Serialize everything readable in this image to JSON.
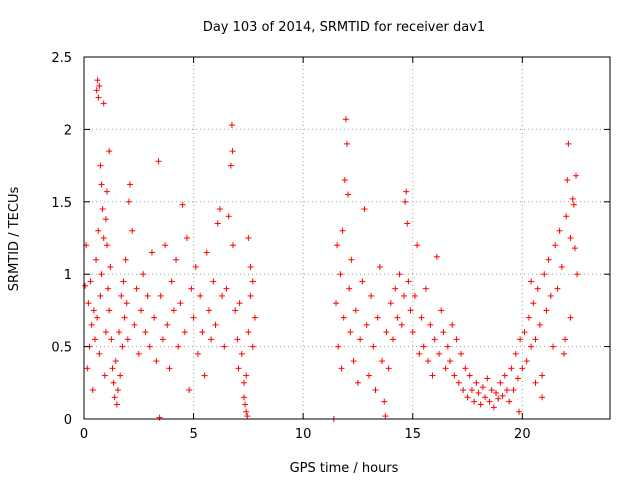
{
  "chart_data": {
    "type": "scatter",
    "title": "Day 103 of 2014, SRMTID for receiver dav1",
    "xlabel": "GPS time / hours",
    "ylabel": "SRMTID / TECUs",
    "xlim": [
      0,
      24
    ],
    "ylim": [
      0,
      2.5
    ],
    "x_ticks": [
      {
        "value": 0,
        "label": "0"
      },
      {
        "value": 5,
        "label": "5"
      },
      {
        "value": 10,
        "label": "10"
      },
      {
        "value": 15,
        "label": "15"
      },
      {
        "value": 20,
        "label": "20"
      }
    ],
    "y_ticks": [
      {
        "value": 0,
        "label": "0"
      },
      {
        "value": 0.5,
        "label": "0.5"
      },
      {
        "value": 1,
        "label": "1"
      },
      {
        "value": 1.5,
        "label": "1.5"
      },
      {
        "value": 2,
        "label": "2"
      },
      {
        "value": 2.5,
        "label": "2.5"
      }
    ],
    "grid": true,
    "marker": "+",
    "series_color": "#ff0000",
    "series": [
      {
        "name": "SRMTID",
        "points": [
          [
            0.05,
            0.92
          ],
          [
            0.1,
            1.2
          ],
          [
            0.15,
            0.35
          ],
          [
            0.2,
            0.8
          ],
          [
            0.25,
            0.5
          ],
          [
            0.3,
            0.95
          ],
          [
            0.35,
            0.65
          ],
          [
            0.4,
            0.2
          ],
          [
            0.45,
            0.75
          ],
          [
            0.5,
            0.55
          ],
          [
            0.55,
            1.1
          ],
          [
            0.6,
            0.7
          ],
          [
            0.65,
            1.3
          ],
          [
            0.7,
            0.45
          ],
          [
            0.75,
            0.85
          ],
          [
            0.8,
            1.0
          ],
          [
            0.85,
            1.45
          ],
          [
            0.9,
            1.25
          ],
          [
            0.95,
            0.3
          ],
          [
            1.0,
            0.6
          ],
          [
            0.58,
            2.27
          ],
          [
            0.62,
            2.34
          ],
          [
            0.66,
            2.22
          ],
          [
            0.7,
            2.3
          ],
          [
            0.9,
            2.18
          ],
          [
            0.75,
            1.75
          ],
          [
            0.8,
            1.62
          ],
          [
            1.05,
            1.57
          ],
          [
            1.15,
            1.85
          ],
          [
            1.0,
            1.38
          ],
          [
            1.05,
            1.2
          ],
          [
            1.1,
            0.9
          ],
          [
            1.15,
            0.75
          ],
          [
            1.2,
            1.05
          ],
          [
            1.25,
            0.55
          ],
          [
            1.3,
            0.35
          ],
          [
            1.35,
            0.25
          ],
          [
            1.4,
            0.15
          ],
          [
            1.45,
            0.4
          ],
          [
            1.5,
            0.1
          ],
          [
            1.55,
            0.2
          ],
          [
            1.6,
            0.6
          ],
          [
            1.65,
            0.3
          ],
          [
            1.7,
            0.85
          ],
          [
            1.75,
            0.5
          ],
          [
            1.8,
            0.95
          ],
          [
            1.85,
            0.7
          ],
          [
            1.9,
            1.1
          ],
          [
            1.95,
            0.8
          ],
          [
            2.0,
            0.55
          ],
          [
            2.05,
            1.5
          ],
          [
            2.1,
            1.62
          ],
          [
            2.2,
            1.3
          ],
          [
            2.3,
            0.65
          ],
          [
            2.4,
            0.9
          ],
          [
            2.5,
            0.45
          ],
          [
            2.6,
            0.75
          ],
          [
            2.7,
            1.0
          ],
          [
            2.8,
            0.6
          ],
          [
            2.9,
            0.85
          ],
          [
            3.0,
            0.5
          ],
          [
            3.1,
            1.15
          ],
          [
            3.2,
            0.7
          ],
          [
            3.3,
            0.4
          ],
          [
            3.4,
            1.78
          ],
          [
            3.45,
            0.01
          ],
          [
            3.5,
            0.85
          ],
          [
            3.6,
            0.55
          ],
          [
            3.7,
            1.2
          ],
          [
            3.8,
            0.65
          ],
          [
            3.9,
            0.35
          ],
          [
            4.0,
            0.95
          ],
          [
            4.1,
            0.75
          ],
          [
            4.2,
            1.1
          ],
          [
            4.3,
            0.5
          ],
          [
            4.4,
            0.8
          ],
          [
            4.5,
            1.48
          ],
          [
            4.6,
            0.6
          ],
          [
            4.7,
            1.25
          ],
          [
            4.8,
            0.2
          ],
          [
            4.9,
            0.9
          ],
          [
            5.0,
            0.7
          ],
          [
            5.1,
            1.05
          ],
          [
            5.2,
            0.45
          ],
          [
            5.3,
            0.85
          ],
          [
            5.4,
            0.6
          ],
          [
            5.5,
            0.3
          ],
          [
            5.6,
            1.15
          ],
          [
            5.7,
            0.75
          ],
          [
            5.8,
            0.55
          ],
          [
            5.9,
            0.95
          ],
          [
            6.0,
            0.65
          ],
          [
            6.1,
            1.35
          ],
          [
            6.2,
            1.45
          ],
          [
            6.3,
            0.85
          ],
          [
            6.4,
            0.5
          ],
          [
            6.5,
            0.9
          ],
          [
            6.6,
            1.4
          ],
          [
            6.7,
            1.75
          ],
          [
            6.75,
            2.03
          ],
          [
            6.78,
            1.85
          ],
          [
            6.8,
            1.2
          ],
          [
            6.9,
            0.75
          ],
          [
            7.0,
            0.55
          ],
          [
            7.05,
            0.35
          ],
          [
            7.1,
            0.8
          ],
          [
            7.2,
            0.45
          ],
          [
            7.3,
            0.25
          ],
          [
            7.35,
            0.1
          ],
          [
            7.4,
            0.05
          ],
          [
            7.5,
            0.6
          ],
          [
            7.6,
            0.85
          ],
          [
            7.7,
            0.5
          ],
          [
            7.8,
            0.7
          ],
          [
            7.4,
            0.3
          ],
          [
            7.5,
            1.25
          ],
          [
            7.6,
            1.05
          ],
          [
            7.3,
            0.15
          ],
          [
            7.45,
            0.02
          ],
          [
            7.7,
            0.95
          ],
          [
            11.4,
            0.0
          ],
          [
            11.5,
            0.8
          ],
          [
            11.55,
            1.2
          ],
          [
            11.6,
            0.5
          ],
          [
            11.7,
            1.0
          ],
          [
            11.75,
            0.35
          ],
          [
            11.8,
            1.3
          ],
          [
            11.85,
            0.7
          ],
          [
            11.9,
            1.65
          ],
          [
            11.95,
            2.07
          ],
          [
            12.0,
            1.9
          ],
          [
            12.05,
            1.55
          ],
          [
            12.1,
            0.9
          ],
          [
            12.15,
            0.6
          ],
          [
            12.2,
            1.1
          ],
          [
            12.3,
            0.4
          ],
          [
            12.4,
            0.75
          ],
          [
            12.5,
            0.25
          ],
          [
            12.6,
            0.55
          ],
          [
            12.7,
            0.95
          ],
          [
            12.8,
            1.45
          ],
          [
            12.9,
            0.65
          ],
          [
            13.0,
            0.3
          ],
          [
            13.1,
            0.85
          ],
          [
            13.2,
            0.5
          ],
          [
            13.3,
            0.2
          ],
          [
            13.4,
            0.7
          ],
          [
            13.5,
            1.05
          ],
          [
            13.6,
            0.4
          ],
          [
            13.7,
            0.12
          ],
          [
            13.75,
            0.02
          ],
          [
            13.8,
            0.6
          ],
          [
            13.9,
            0.35
          ],
          [
            14.0,
            0.8
          ],
          [
            14.1,
            0.55
          ],
          [
            14.2,
            0.9
          ],
          [
            14.3,
            0.7
          ],
          [
            14.4,
            1.0
          ],
          [
            14.5,
            0.65
          ],
          [
            14.6,
            0.85
          ],
          [
            14.65,
            1.5
          ],
          [
            14.7,
            1.57
          ],
          [
            14.75,
            1.35
          ],
          [
            14.8,
            0.95
          ],
          [
            14.9,
            0.75
          ],
          [
            15.0,
            0.6
          ],
          [
            15.1,
            0.85
          ],
          [
            15.2,
            1.2
          ],
          [
            15.3,
            0.45
          ],
          [
            15.4,
            0.7
          ],
          [
            15.5,
            0.5
          ],
          [
            15.6,
            0.9
          ],
          [
            15.7,
            0.4
          ],
          [
            15.8,
            0.65
          ],
          [
            15.9,
            0.3
          ],
          [
            16.0,
            0.55
          ],
          [
            16.1,
            1.12
          ],
          [
            16.2,
            0.45
          ],
          [
            16.3,
            0.75
          ],
          [
            16.4,
            0.6
          ],
          [
            16.5,
            0.35
          ],
          [
            16.6,
            0.5
          ],
          [
            16.7,
            0.4
          ],
          [
            16.8,
            0.65
          ],
          [
            16.9,
            0.3
          ],
          [
            17.0,
            0.55
          ],
          [
            17.1,
            0.25
          ],
          [
            17.2,
            0.45
          ],
          [
            17.3,
            0.2
          ],
          [
            17.4,
            0.35
          ],
          [
            17.5,
            0.15
          ],
          [
            17.6,
            0.3
          ],
          [
            17.7,
            0.2
          ],
          [
            17.8,
            0.12
          ],
          [
            17.9,
            0.25
          ],
          [
            18.0,
            0.18
          ],
          [
            18.1,
            0.1
          ],
          [
            18.2,
            0.22
          ],
          [
            18.3,
            0.15
          ],
          [
            18.4,
            0.28
          ],
          [
            18.5,
            0.12
          ],
          [
            18.6,
            0.2
          ],
          [
            18.7,
            0.08
          ],
          [
            18.8,
            0.18
          ],
          [
            18.9,
            0.14
          ],
          [
            19.0,
            0.25
          ],
          [
            19.1,
            0.16
          ],
          [
            19.2,
            0.3
          ],
          [
            19.3,
            0.2
          ],
          [
            19.4,
            0.12
          ],
          [
            19.5,
            0.35
          ],
          [
            19.6,
            0.2
          ],
          [
            19.7,
            0.45
          ],
          [
            19.8,
            0.28
          ],
          [
            19.9,
            0.55
          ],
          [
            20.0,
            0.35
          ],
          [
            20.1,
            0.6
          ],
          [
            20.2,
            0.4
          ],
          [
            20.3,
            0.7
          ],
          [
            20.4,
            0.5
          ],
          [
            20.5,
            0.8
          ],
          [
            20.6,
            0.55
          ],
          [
            20.7,
            0.9
          ],
          [
            20.8,
            0.65
          ],
          [
            20.9,
            0.3
          ],
          [
            21.0,
            1.0
          ],
          [
            21.1,
            0.75
          ],
          [
            21.2,
            1.1
          ],
          [
            21.3,
            0.85
          ],
          [
            21.4,
            0.5
          ],
          [
            21.5,
            1.2
          ],
          [
            21.6,
            0.9
          ],
          [
            21.7,
            1.3
          ],
          [
            21.8,
            1.05
          ],
          [
            21.9,
            0.45
          ],
          [
            22.0,
            1.4
          ],
          [
            22.05,
            1.65
          ],
          [
            22.1,
            1.9
          ],
          [
            22.2,
            1.25
          ],
          [
            22.3,
            1.52
          ],
          [
            22.35,
            1.48
          ],
          [
            22.4,
            1.18
          ],
          [
            22.45,
            1.68
          ],
          [
            22.5,
            1.0
          ],
          [
            22.2,
            0.7
          ],
          [
            21.95,
            0.55
          ],
          [
            20.9,
            0.15
          ],
          [
            20.6,
            0.25
          ],
          [
            19.85,
            0.05
          ],
          [
            20.4,
            0.95
          ]
        ]
      }
    ]
  }
}
